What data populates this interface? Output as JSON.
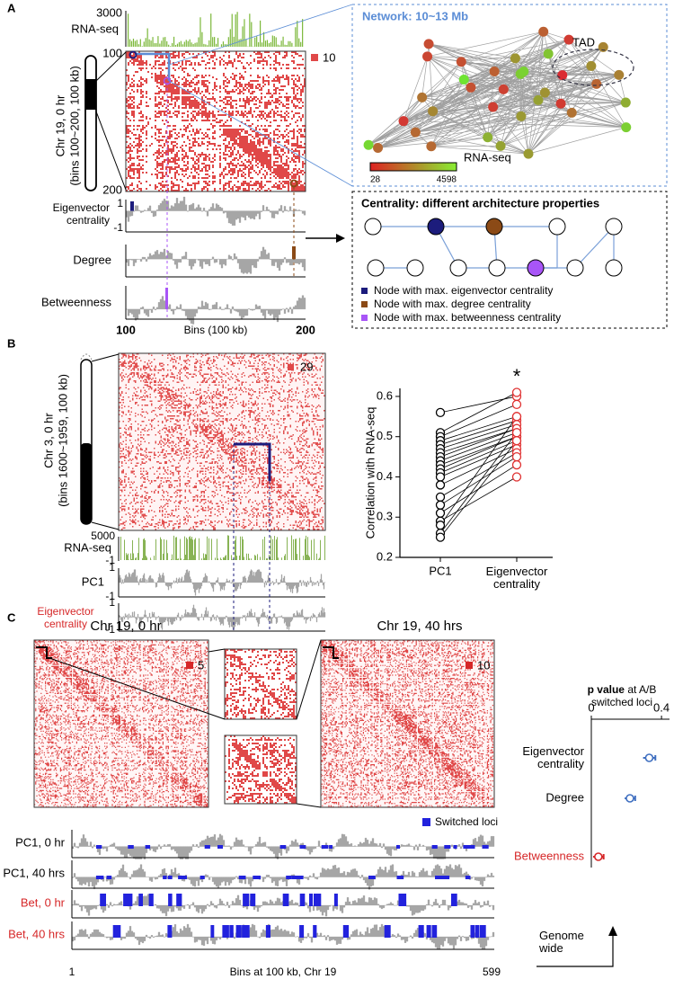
{
  "panel_a": {
    "label": "A",
    "rna_seq": {
      "label": "RNA-seq",
      "max": "3000"
    },
    "heatmap": {
      "start": "100",
      "end": "200",
      "legend": "10"
    },
    "chromosome": {
      "name": "Chr 19, 0 hr",
      "bins": "(bins 100~200, 100 kb)"
    },
    "tracks": [
      {
        "label": "Eigenvector centrality",
        "top": "1",
        "bottom": "-1"
      },
      {
        "label": "Degree"
      },
      {
        "label": "Betweenness"
      }
    ],
    "x_axis": {
      "start": "100",
      "end": "200",
      "label": "Bins (100 kb)"
    },
    "network": {
      "title": "Network: 10~13 Mb",
      "tad": "TAD",
      "colorbar": {
        "label": "RNA-seq",
        "min": "28",
        "max": "4598"
      }
    },
    "centrality": {
      "title": "Centrality: different architecture properties",
      "legend": [
        {
          "text": "Node with max. eigenvector centrality",
          "color": "#1c1c7c"
        },
        {
          "text": "Node with max. degree centrality",
          "color": "#8b4a16"
        },
        {
          "text": "Node with max. betweenness centrality",
          "color": "#a855f7"
        }
      ]
    }
  },
  "panel_b": {
    "label": "B",
    "chromosome": {
      "name": "Chr 3, 0 hr",
      "bins": "(bins 1600~1959, 100 kb)"
    },
    "heatmap": {
      "legend": "29"
    },
    "rna_seq": {
      "label": "RNA-seq",
      "max": "5000",
      "min": "-1"
    },
    "tracks": [
      {
        "label": "PC1",
        "top": "1",
        "bottom": "-1",
        "color": "#000000"
      },
      {
        "label": "Eigenvector centrality",
        "top": "1",
        "bottom": "-1",
        "color": "#d62728"
      }
    ],
    "chart": {
      "type": "paired-scatter",
      "ylabel": "Correlation with RNA-seq",
      "categories": [
        "PC1",
        "Eigenvector centrality"
      ],
      "annotation": "*",
      "series": [
        {
          "color": "#000000",
          "values": [
            0.56,
            0.51,
            0.5,
            0.49,
            0.48,
            0.47,
            0.46,
            0.45,
            0.44,
            0.43,
            0.42,
            0.41,
            0.4,
            0.38,
            0.35,
            0.33,
            0.31,
            0.29,
            0.28,
            0.26,
            0.25
          ]
        },
        {
          "color": "#e03030",
          "values": [
            0.6,
            0.61,
            0.58,
            0.55,
            0.54,
            0.53,
            0.52,
            0.52,
            0.51,
            0.5,
            0.5,
            0.49,
            0.48,
            0.47,
            0.46,
            0.45,
            0.43,
            0.4,
            0.55,
            0.51,
            0.49
          ]
        }
      ],
      "ylim": [
        0.2,
        0.62
      ],
      "yticks": [
        0.2,
        0.3,
        0.4,
        0.5,
        0.6
      ]
    }
  },
  "panel_c": {
    "label": "C",
    "maps": [
      {
        "title": "Chr 19, 0 hr",
        "legend": "5"
      },
      {
        "title": "Chr 19, 40 hrs",
        "legend": "10"
      }
    ],
    "switched_legend": "Switched loci",
    "tracks": [
      {
        "label": "PC1, 0 hr",
        "color": "#000000"
      },
      {
        "label": "PC1, 40 hrs",
        "color": "#000000"
      },
      {
        "label": "Bet, 0 hr",
        "color": "#d62728"
      },
      {
        "label": "Bet, 40 hrs",
        "color": "#d62728"
      }
    ],
    "x_axis": {
      "start": "1",
      "end": "599",
      "label": "Bins at 100 kb, Chr 19"
    },
    "chart": {
      "type": "dot-error",
      "title_bold": "p value",
      "title": "at A/B switched loci",
      "categories": [
        "Eigenvector centrality",
        "Degree",
        "Betweenness"
      ],
      "label_colors": [
        "#000000",
        "#000000",
        "#d62728"
      ],
      "colors": [
        "#3f6fc0",
        "#3f6fc0",
        "#d62728"
      ],
      "values": [
        0.33,
        0.22,
        0.04
      ],
      "errors": [
        0.035,
        0.03,
        0.03
      ],
      "xlim": [
        0,
        0.42
      ],
      "xticks": [
        0,
        0.4
      ],
      "footer": "Genome wide"
    }
  }
}
